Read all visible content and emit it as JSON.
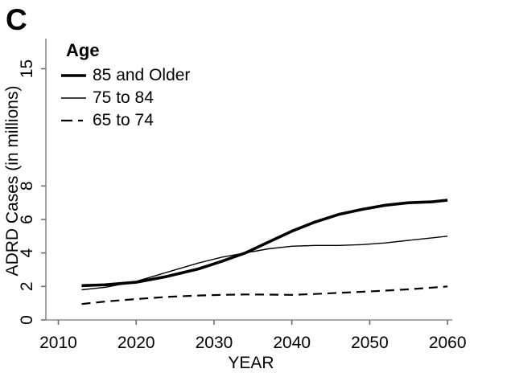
{
  "panel_label": "C",
  "colors": {
    "background": "#ffffff",
    "axis_line": "#8c8c8c",
    "tick_mark": "#6e6e6e",
    "text": "#000000",
    "series_line": "#000000"
  },
  "chart_data": {
    "type": "line",
    "title": "",
    "xlabel": "YEAR",
    "ylabel": "ADRD Cases (in millions)",
    "legend_title": "Age",
    "legend_position": "top-left-inside",
    "grid": false,
    "xlim": [
      2008.4,
      2060.6
    ],
    "ylim": [
      0,
      16.8
    ],
    "xticks": [
      2010,
      2020,
      2030,
      2040,
      2050,
      2060
    ],
    "yticks": [
      0,
      2,
      4,
      6,
      8,
      15
    ],
    "x": [
      2013,
      2016,
      2020,
      2024,
      2028,
      2031,
      2034,
      2037,
      2040,
      2043,
      2046,
      2049,
      2052,
      2055,
      2058,
      2060
    ],
    "series": [
      {
        "name": "85 and Older",
        "line_style": "solid",
        "line_weight": "thick",
        "values": [
          2.05,
          2.1,
          2.25,
          2.6,
          3.05,
          3.5,
          4.0,
          4.65,
          5.3,
          5.85,
          6.3,
          6.6,
          6.85,
          7.0,
          7.05,
          7.15
        ]
      },
      {
        "name": "75 to 84",
        "line_style": "solid",
        "line_weight": "thin",
        "values": [
          1.8,
          1.95,
          2.3,
          2.85,
          3.4,
          3.75,
          4.0,
          4.25,
          4.4,
          4.45,
          4.45,
          4.5,
          4.6,
          4.75,
          4.9,
          5.0
        ]
      },
      {
        "name": "65 to 74",
        "line_style": "dashed",
        "line_weight": "medium",
        "values": [
          0.95,
          1.1,
          1.25,
          1.38,
          1.46,
          1.5,
          1.52,
          1.51,
          1.5,
          1.55,
          1.62,
          1.68,
          1.75,
          1.83,
          1.93,
          2.0
        ]
      }
    ]
  }
}
